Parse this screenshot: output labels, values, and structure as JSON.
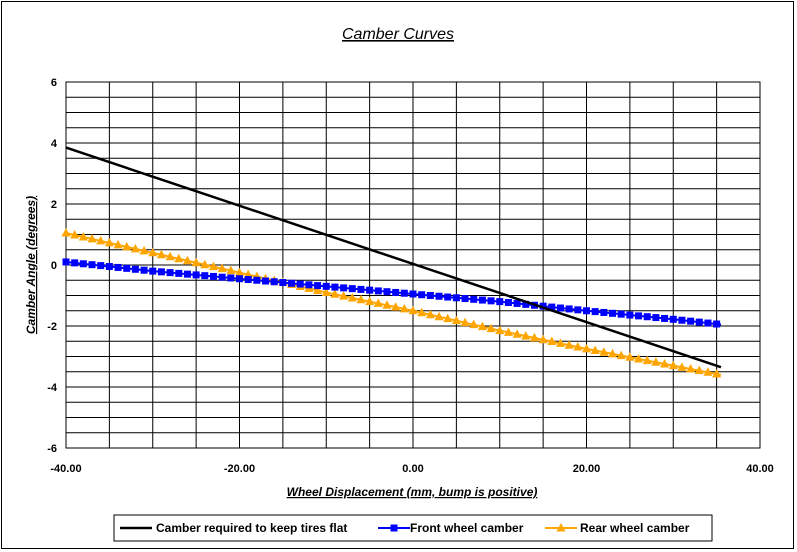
{
  "chart_data": {
    "type": "line",
    "title": "Camber Curves",
    "xlabel": "Wheel Displacement (mm, bump is positive)",
    "ylabel": "Camber Angle (degrees)",
    "xlim": [
      -40,
      40
    ],
    "ylim": [
      -6,
      6
    ],
    "x_ticks": [
      "-40.00",
      "-20.00",
      "0.00",
      "20.00",
      "40.00"
    ],
    "y_ticks": [
      "6",
      "4",
      "2",
      "0",
      "-2",
      "-4",
      "-6"
    ],
    "grid": true,
    "legend_position": "bottom",
    "series": [
      {
        "name": "Camber required to keep tires flat",
        "color": "#000000",
        "marker": "none",
        "x": [
          -40,
          35.5
        ],
        "y": [
          3.85,
          -3.35
        ]
      },
      {
        "name": "Front wheel camber",
        "color": "#0000ff",
        "marker": "square",
        "x": [
          -40,
          -30,
          -20,
          -10,
          0,
          10,
          20,
          30,
          35.5
        ],
        "y": [
          0.1,
          -0.2,
          -0.45,
          -0.7,
          -0.95,
          -1.2,
          -1.5,
          -1.78,
          -1.95
        ]
      },
      {
        "name": "Rear wheel camber",
        "color": "#ffa500",
        "marker": "triangle",
        "x": [
          -40,
          -30,
          -20,
          -10,
          0,
          10,
          20,
          30,
          35.5
        ],
        "y": [
          1.05,
          0.4,
          -0.25,
          -0.9,
          -1.5,
          -2.15,
          -2.75,
          -3.3,
          -3.6
        ]
      }
    ]
  }
}
